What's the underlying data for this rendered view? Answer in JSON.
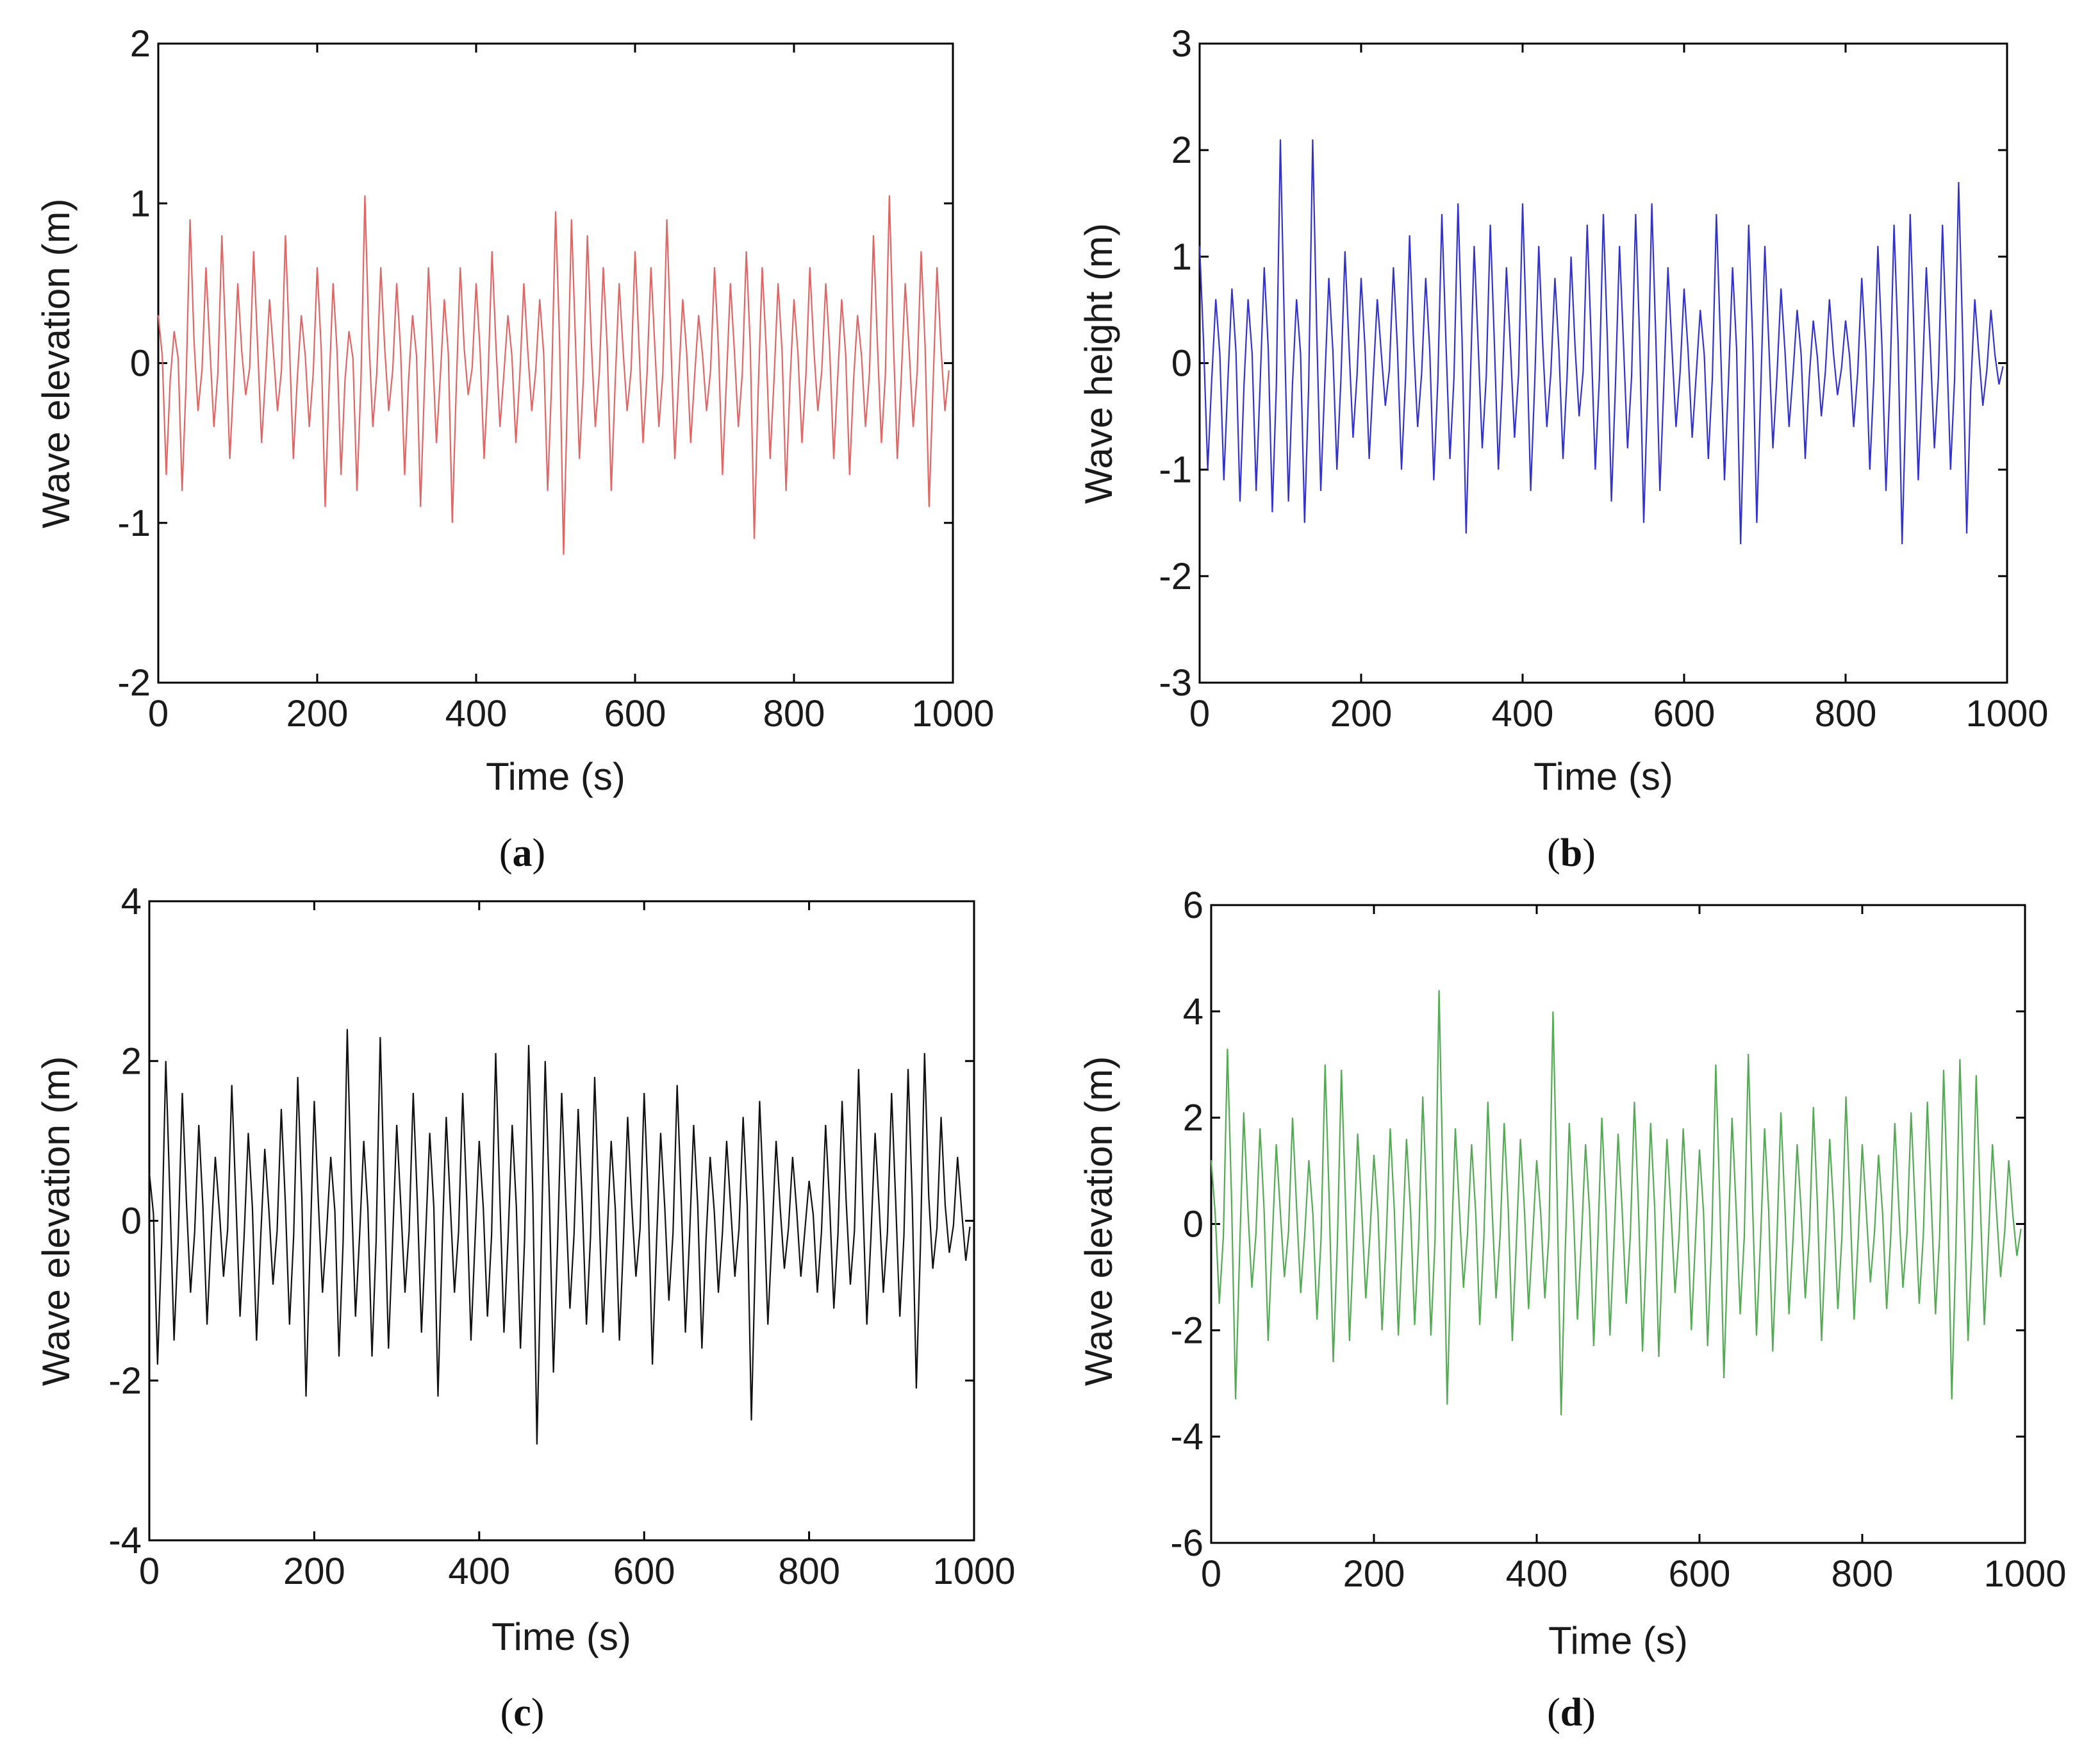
{
  "figure": {
    "panels": [
      {
        "caption_letter": "a"
      },
      {
        "caption_letter": "b"
      },
      {
        "caption_letter": "c"
      },
      {
        "caption_letter": "d"
      }
    ]
  },
  "chart_data": [
    {
      "type": "line",
      "panel": "a",
      "xlabel": "Time (s)",
      "ylabel": "Wave elevation (m)",
      "xlim": [
        0,
        1000
      ],
      "ylim": [
        -2,
        2
      ],
      "xticks": [
        0,
        200,
        400,
        600,
        800,
        1000
      ],
      "yticks": [
        -2,
        -1,
        0,
        1,
        2
      ],
      "color": "#e06666",
      "grid": false,
      "series": {
        "name": "Wave elevation",
        "x_start": 0,
        "x_step": 10,
        "values": [
          0.3,
          -0.7,
          0.2,
          -0.8,
          0.9,
          -0.3,
          0.6,
          -0.4,
          0.8,
          -0.6,
          0.5,
          -0.2,
          0.7,
          -0.5,
          0.4,
          -0.3,
          0.8,
          -0.6,
          0.3,
          -0.4,
          0.6,
          -0.9,
          0.5,
          -0.7,
          0.2,
          -0.8,
          1.05,
          -0.4,
          0.6,
          -0.3,
          0.5,
          -0.7,
          0.3,
          -0.9,
          0.6,
          -0.5,
          0.4,
          -1.0,
          0.6,
          -0.2,
          0.5,
          -0.6,
          0.7,
          -0.4,
          0.3,
          -0.5,
          0.5,
          -0.3,
          0.4,
          -0.8,
          0.95,
          -1.2,
          0.9,
          -0.6,
          0.8,
          -0.4,
          0.6,
          -0.8,
          0.5,
          -0.3,
          0.7,
          -0.5,
          0.6,
          -0.4,
          0.9,
          -0.6,
          0.4,
          -0.5,
          0.3,
          -0.3,
          0.6,
          -0.7,
          0.5,
          -0.4,
          0.7,
          -1.1,
          0.6,
          -0.6,
          0.5,
          -0.8,
          0.4,
          -0.5,
          0.6,
          -0.3,
          0.5,
          -0.6,
          0.4,
          -0.7,
          0.3,
          -0.4,
          0.8,
          -0.5,
          1.05,
          -0.6,
          0.5,
          -0.4,
          0.7,
          -0.9,
          0.6,
          -0.3
        ]
      }
    },
    {
      "type": "line",
      "panel": "b",
      "xlabel": "Time (s)",
      "ylabel": "Wave height (m)",
      "xlim": [
        0,
        1000
      ],
      "ylim": [
        -3,
        3
      ],
      "xticks": [
        0,
        200,
        400,
        600,
        800,
        1000
      ],
      "yticks": [
        -3,
        -2,
        -1,
        0,
        1,
        2,
        3
      ],
      "color": "#3333cc",
      "grid": false,
      "series": {
        "name": "Wave height",
        "x_start": 0,
        "x_step": 10,
        "values": [
          1.1,
          -1.0,
          0.6,
          -1.1,
          0.7,
          -1.3,
          0.6,
          -1.2,
          0.9,
          -1.4,
          2.1,
          -1.3,
          0.6,
          -1.5,
          2.1,
          -1.2,
          0.8,
          -1.0,
          1.05,
          -0.7,
          0.8,
          -0.9,
          0.6,
          -0.4,
          0.9,
          -1.0,
          1.2,
          -0.6,
          0.8,
          -1.1,
          1.4,
          -0.9,
          1.5,
          -1.6,
          1.1,
          -0.8,
          1.3,
          -1.0,
          0.9,
          -0.7,
          1.5,
          -1.2,
          1.1,
          -0.6,
          0.8,
          -0.9,
          1.0,
          -0.5,
          1.3,
          -1.0,
          1.4,
          -1.3,
          1.1,
          -0.8,
          1.4,
          -1.5,
          1.5,
          -1.2,
          0.9,
          -0.6,
          0.7,
          -0.7,
          0.5,
          -0.9,
          1.4,
          -1.1,
          0.9,
          -1.7,
          1.3,
          -1.5,
          1.1,
          -0.8,
          0.7,
          -0.6,
          0.5,
          -0.9,
          0.4,
          -0.5,
          0.6,
          -0.3,
          0.4,
          -0.6,
          0.8,
          -1.0,
          1.1,
          -1.2,
          1.3,
          -1.7,
          1.4,
          -1.1,
          0.9,
          -0.8,
          1.3,
          -1.0,
          1.7,
          -1.6,
          0.6,
          -0.4,
          0.5,
          -0.2
        ]
      }
    },
    {
      "type": "line",
      "panel": "c",
      "xlabel": "Time (s)",
      "ylabel": "Wave elevation (m)",
      "xlim": [
        0,
        1000
      ],
      "ylim": [
        -4,
        4
      ],
      "xticks": [
        0,
        200,
        400,
        600,
        800,
        1000
      ],
      "yticks": [
        -4,
        -2,
        0,
        2,
        4
      ],
      "color": "#111111",
      "grid": false,
      "series": {
        "name": "Wave elevation",
        "x_start": 0,
        "x_step": 10,
        "values": [
          0.6,
          -1.8,
          2.0,
          -1.5,
          1.6,
          -0.9,
          1.2,
          -1.3,
          0.8,
          -0.7,
          1.7,
          -1.2,
          1.1,
          -1.5,
          0.9,
          -0.8,
          1.4,
          -1.3,
          1.8,
          -2.2,
          1.5,
          -0.9,
          0.8,
          -1.7,
          2.4,
          -1.2,
          1.0,
          -1.7,
          2.3,
          -1.6,
          1.2,
          -0.9,
          1.6,
          -1.4,
          1.1,
          -2.2,
          1.3,
          -0.9,
          1.6,
          -1.5,
          1.0,
          -1.2,
          2.1,
          -1.4,
          1.2,
          -1.6,
          2.2,
          -2.8,
          2.0,
          -1.9,
          1.6,
          -1.1,
          1.4,
          -1.3,
          1.8,
          -1.4,
          1.0,
          -1.5,
          1.3,
          -0.7,
          1.6,
          -1.8,
          1.1,
          -1.0,
          1.7,
          -1.4,
          1.2,
          -1.6,
          0.8,
          -0.9,
          1.0,
          -0.7,
          1.3,
          -2.5,
          1.5,
          -1.3,
          1.0,
          -0.6,
          0.8,
          -0.7,
          0.5,
          -0.9,
          1.2,
          -1.1,
          1.5,
          -0.8,
          1.9,
          -1.3,
          1.1,
          -0.9,
          1.6,
          -1.2,
          1.9,
          -2.1,
          2.1,
          -0.6,
          1.3,
          -0.4,
          0.8,
          -0.5
        ]
      }
    },
    {
      "type": "line",
      "panel": "d",
      "xlabel": "Time (s)",
      "ylabel": "Wave elevation (m)",
      "xlim": [
        0,
        1000
      ],
      "ylim": [
        -6,
        6
      ],
      "xticks": [
        0,
        200,
        400,
        600,
        800,
        1000
      ],
      "yticks": [
        -6,
        -4,
        -2,
        0,
        2,
        4,
        6
      ],
      "color": "#55aa55",
      "grid": false,
      "series": {
        "name": "Wave elevation",
        "x_start": 0,
        "x_step": 10,
        "values": [
          1.2,
          -1.5,
          3.3,
          -3.3,
          2.1,
          -1.2,
          1.8,
          -2.2,
          1.5,
          -1.0,
          2.0,
          -1.3,
          1.2,
          -1.8,
          3.0,
          -2.6,
          2.9,
          -2.2,
          1.7,
          -1.4,
          1.3,
          -2.0,
          1.8,
          -2.1,
          1.6,
          -1.9,
          2.4,
          -2.1,
          4.4,
          -3.4,
          1.8,
          -1.2,
          1.5,
          -1.9,
          2.3,
          -1.4,
          1.9,
          -2.2,
          1.6,
          -1.6,
          1.2,
          -1.4,
          4.0,
          -3.6,
          1.9,
          -1.8,
          1.5,
          -2.3,
          2.0,
          -2.1,
          1.7,
          -1.5,
          2.3,
          -2.4,
          1.9,
          -2.5,
          1.6,
          -1.3,
          1.8,
          -2.0,
          1.4,
          -2.3,
          3.0,
          -2.9,
          2.0,
          -1.7,
          3.2,
          -2.1,
          1.8,
          -2.4,
          2.1,
          -1.7,
          1.5,
          -1.4,
          2.2,
          -2.2,
          1.6,
          -1.6,
          2.4,
          -1.8,
          1.5,
          -1.1,
          1.3,
          -1.6,
          1.9,
          -1.2,
          2.1,
          -1.5,
          2.3,
          -1.7,
          2.9,
          -3.3,
          3.1,
          -2.2,
          2.8,
          -1.9,
          1.5,
          -1.0,
          1.2,
          -0.6
        ]
      }
    }
  ]
}
